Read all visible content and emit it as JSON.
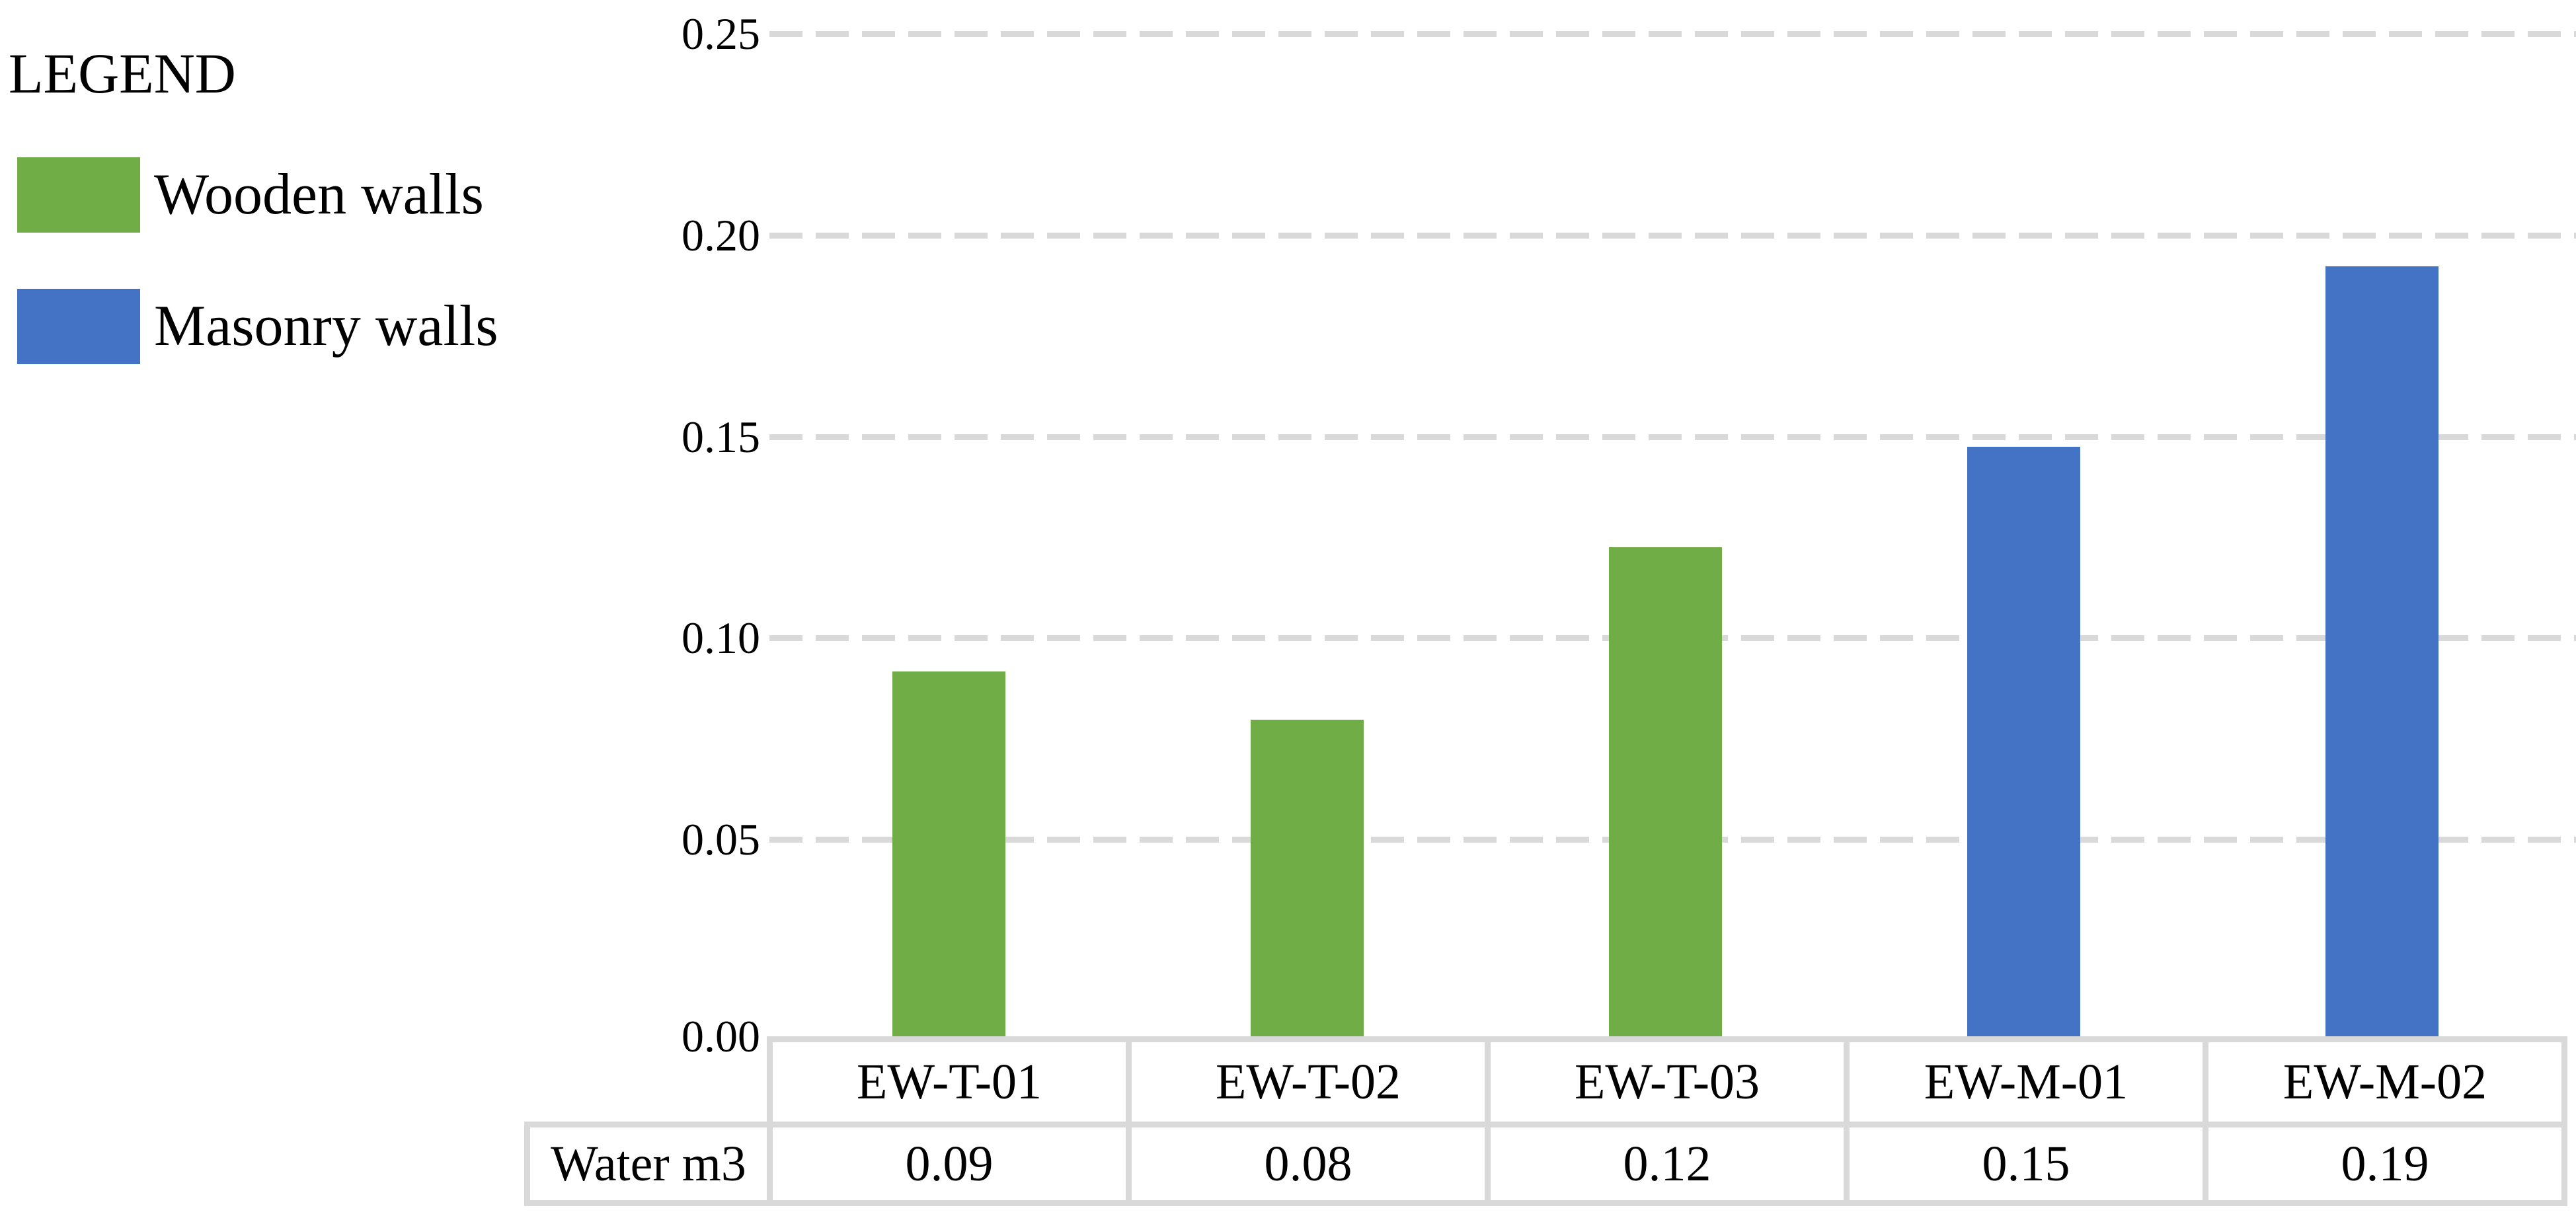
{
  "legend": {
    "title": "LEGEND",
    "items": [
      {
        "label": "Wooden walls",
        "series": "wooden"
      },
      {
        "label": "Masonry walls",
        "series": "masonry"
      }
    ]
  },
  "colors": {
    "wooden": "#70AD47",
    "masonry": "#4472C4",
    "gridline": "#D9D9D9",
    "table_border": "#D9D9D9",
    "text": "#000000"
  },
  "axis": {
    "ticks": [
      "0.25",
      "0.20",
      "0.15",
      "0.10",
      "0.05",
      "0.00"
    ]
  },
  "table": {
    "row_label": "Water m3",
    "categories": [
      "EW-T-01",
      "EW-T-02",
      "EW-T-03",
      "EW-M-01",
      "EW-M-02"
    ],
    "values": [
      "0.09",
      "0.08",
      "0.12",
      "0.15",
      "0.19"
    ]
  },
  "chart_data": {
    "type": "bar",
    "title": "",
    "categories": [
      "EW-T-01",
      "EW-T-02",
      "EW-T-03",
      "EW-M-01",
      "EW-M-02"
    ],
    "values": [
      0.09,
      0.08,
      0.12,
      0.15,
      0.19
    ],
    "bar_series": [
      "wooden",
      "wooden",
      "wooden",
      "masonry",
      "masonry"
    ],
    "render_values": [
      0.091,
      0.079,
      0.122,
      0.147,
      0.192
    ],
    "series": [
      {
        "name": "Wooden walls",
        "color": "#70AD47",
        "categories": [
          "EW-T-01",
          "EW-T-02",
          "EW-T-03"
        ],
        "values": [
          0.09,
          0.08,
          0.12
        ]
      },
      {
        "name": "Masonry walls",
        "color": "#4472C4",
        "categories": [
          "EW-M-01",
          "EW-M-02"
        ],
        "values": [
          0.15,
          0.19
        ]
      }
    ],
    "xlabel": "",
    "ylabel": "Water m3",
    "ylim": [
      0,
      0.25
    ],
    "ytick_step": 0.05,
    "grid": "horizontal-dashed",
    "legend_position": "top-left",
    "data_table_shown": true
  }
}
